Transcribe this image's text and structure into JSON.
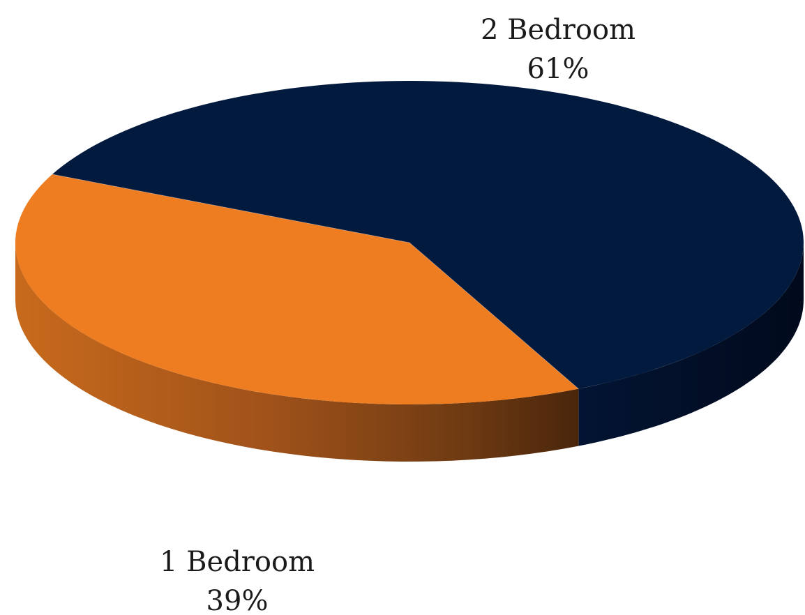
{
  "chart_data": {
    "type": "pie",
    "title": "",
    "legend": "none",
    "slices": [
      {
        "label": "2 Bedroom",
        "value": 61,
        "display": "61%",
        "color": "#031a3f"
      },
      {
        "label": "1 Bedroom",
        "value": 39,
        "display": "39%",
        "color": "#ee7d22"
      }
    ],
    "style": "3d"
  }
}
